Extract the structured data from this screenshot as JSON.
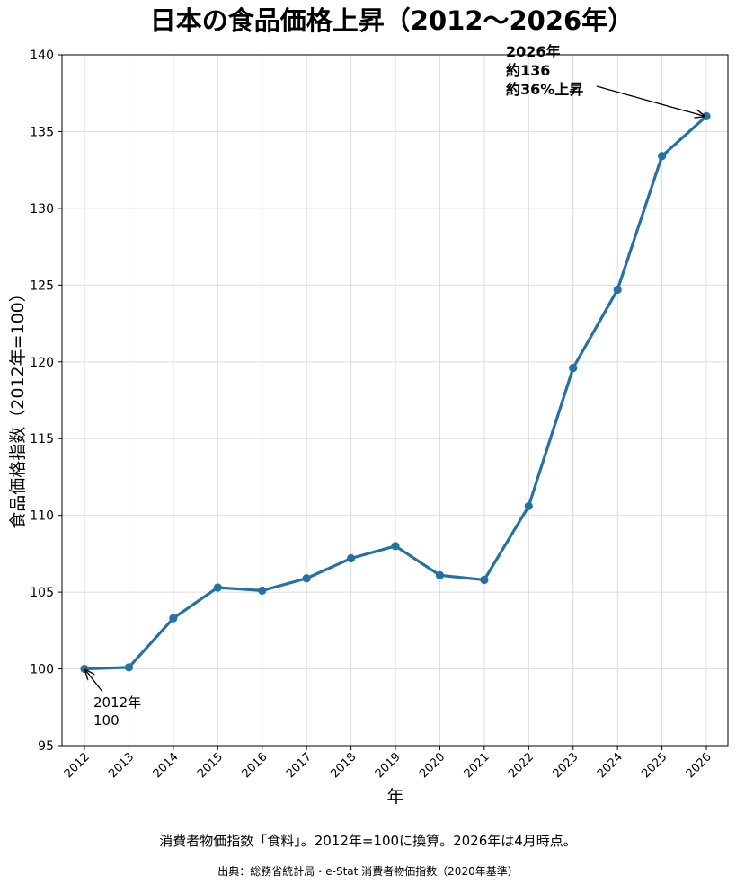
{
  "chart_data": {
    "type": "line",
    "title": "日本の食品価格上昇（2012〜2026年）",
    "xlabel": "年",
    "ylabel": "食品価格指数（2012年=100）",
    "x": [
      "2012",
      "2013",
      "2014",
      "2015",
      "2016",
      "2017",
      "2018",
      "2019",
      "2020",
      "2021",
      "2022",
      "2023",
      "2024",
      "2025",
      "2026"
    ],
    "series": [
      {
        "values": [
          100.0,
          100.1,
          103.3,
          105.3,
          105.1,
          105.9,
          107.2,
          108.0,
          106.1,
          105.8,
          110.6,
          119.6,
          124.7,
          133.4,
          136.0
        ]
      }
    ],
    "ylim": [
      95,
      140
    ],
    "yticks": [
      95,
      100,
      105,
      110,
      115,
      120,
      125,
      130,
      135,
      140
    ],
    "grid": true,
    "line_color": "#2471a3",
    "annotations": [
      {
        "x": "2012",
        "y": 100,
        "lines": [
          "2012年",
          "100"
        ],
        "bold": false
      },
      {
        "x": "2026",
        "y": 136,
        "lines": [
          "2026年",
          "約136",
          "約36%上昇"
        ],
        "bold": true
      }
    ]
  },
  "captions": {
    "note": "消費者物価指数「食料」。2012年=100に換算。2026年は4月時点。",
    "source": "出典：総務省統計局・e-Stat 消費者物価指数（2020年基準）"
  }
}
